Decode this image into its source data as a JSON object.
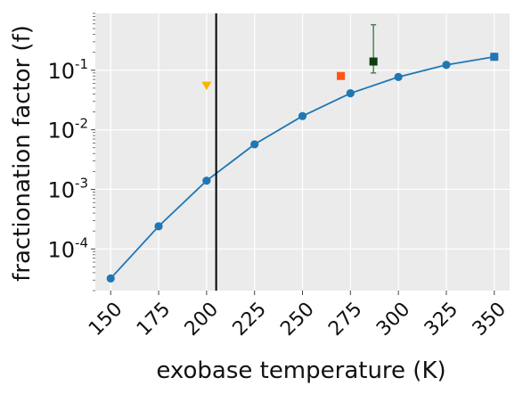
{
  "chart_data": {
    "type": "line",
    "xlabel": "exobase temperature (K)",
    "ylabel": "fractionation factor (f)",
    "y_scale": "log",
    "grid": true,
    "xlim": [
      142,
      358
    ],
    "ylim": [
      2e-05,
      0.9
    ],
    "x_ticks": [
      "150",
      "175",
      "200",
      "225",
      "250",
      "275",
      "300",
      "325",
      "350"
    ],
    "y_ticks": [
      {
        "value": 0.1,
        "base": "10",
        "exp": "-1"
      },
      {
        "value": 0.01,
        "base": "10",
        "exp": "-2"
      },
      {
        "value": 0.001,
        "base": "10",
        "exp": "-3"
      },
      {
        "value": 0.0001,
        "base": "10",
        "exp": "-4"
      }
    ],
    "series": [
      {
        "color": "#1f77b4",
        "x": [
          150,
          175,
          200,
          225,
          250,
          275,
          300,
          325,
          350
        ],
        "y": [
          3.2e-05,
          0.00024,
          0.0014,
          0.0057,
          0.017,
          0.041,
          0.077,
          0.123,
          0.168
        ]
      }
    ],
    "markers": [
      {
        "shape": "triangle-down",
        "color": "#f2b800",
        "x": 200,
        "y": 0.055
      },
      {
        "shape": "square",
        "color": "#ff5511",
        "x": 270,
        "y": 0.08
      },
      {
        "shape": "square",
        "color": "#0d3d0d",
        "x": 287,
        "y": 0.14,
        "y_err": [
          0.09,
          0.58
        ],
        "err_color": "#4a7a4a"
      },
      {
        "shape": "square",
        "color": "#1f77b4",
        "x": 350,
        "y": 0.168
      }
    ],
    "vline": {
      "x": 205,
      "color": "#000000"
    }
  }
}
